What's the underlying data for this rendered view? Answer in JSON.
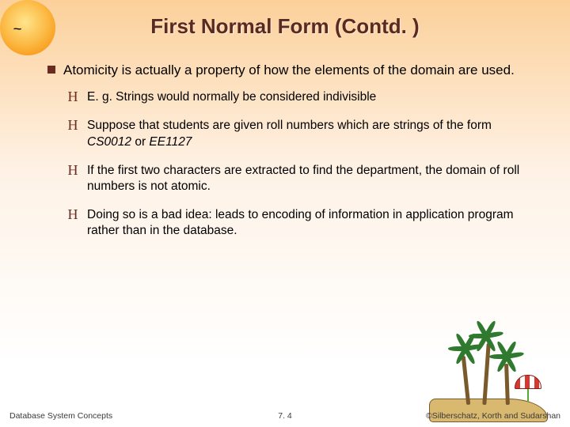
{
  "colors": {
    "title_color": "#5a2a20",
    "bullet_color": "#6a2c1d",
    "background_top": "#fcd09a",
    "background_bottom": "#ffffff",
    "text_color": "#000000",
    "footer_color": "#3a3a3a"
  },
  "typography": {
    "title_fontsize_pt": 20,
    "body_fontsize_pt": 13,
    "sub_fontsize_pt": 12,
    "footer_fontsize_pt": 8,
    "title_weight": "bold"
  },
  "title": "First Normal Form (Contd. )",
  "bullets": [
    {
      "text": "Atomicity is actually a property of how the elements of the domain are used.",
      "sub": [
        {
          "text": "E. g. Strings would normally be considered indivisible"
        },
        {
          "text_parts": [
            "Suppose that students are given roll numbers which are strings   of the form ",
            "CS0012",
            " or ",
            "EE1127"
          ]
        },
        {
          "text": "If the first two characters are extracted to find the department, the domain of roll numbers is not atomic."
        },
        {
          "text": "Doing so is a bad idea: leads to encoding of information in application program rather than in the database."
        }
      ]
    }
  ],
  "sub_bullet_marker": "H",
  "footer": {
    "left": "Database System Concepts",
    "center": "7. 4",
    "right": "©Silberschatz, Korth and Sudarshan"
  }
}
